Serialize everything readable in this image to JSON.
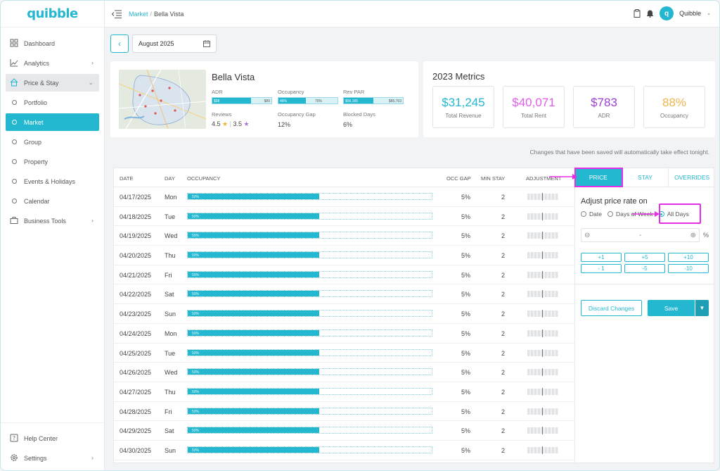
{
  "brand": "quibble",
  "breadcrumb": {
    "parent": "Market",
    "current": "Bella Vista"
  },
  "user": {
    "initial": "q",
    "name": "Quibble"
  },
  "sidebar": {
    "items": [
      {
        "label": "Dashboard"
      },
      {
        "label": "Analytics"
      },
      {
        "label": "Price & Stay"
      },
      {
        "label": "Portfolio"
      },
      {
        "label": "Market"
      },
      {
        "label": "Group"
      },
      {
        "label": "Property"
      },
      {
        "label": "Events & Holidays"
      },
      {
        "label": "Calendar"
      },
      {
        "label": "Business Tools"
      }
    ],
    "bottom": [
      {
        "label": "Help Center"
      },
      {
        "label": "Settings"
      }
    ]
  },
  "toolbar": {
    "month": "August 2025"
  },
  "property": {
    "name": "Bella Vista",
    "adr_label": "ADR",
    "adr_left": "$98",
    "adr_right": "$89",
    "adr_fill": 0.66,
    "occ_label": "Occupancy",
    "occ_left": "46%",
    "occ_right": "70%",
    "occ_fill": 0.46,
    "revpar_label": "Rev PAR",
    "revpar_left": "$56,165",
    "revpar_right": "$85,763",
    "revpar_fill": 0.5,
    "reviews_label": "Reviews",
    "review_a": "4.5",
    "review_b": "3.5",
    "gap_label": "Occupancy Gap",
    "gap_value": "12%",
    "blocked_label": "Blocked Days",
    "blocked_value": "6%"
  },
  "metrics": {
    "title": "2023 Metrics",
    "cards": [
      {
        "value": "$31,245",
        "label": "Total Revenue",
        "color": "#23b7d0"
      },
      {
        "value": "$40,071",
        "label": "Total Rent",
        "color": "#e05ee8"
      },
      {
        "value": "$783",
        "label": "ADR",
        "color": "#9b3fd6"
      },
      {
        "value": "88%",
        "label": "Occupancy",
        "color": "#f0b64d"
      }
    ]
  },
  "notice": "Changes that have been saved will automatically take effect tonight.",
  "table": {
    "headers": {
      "date": "DATE",
      "day": "DAY",
      "occupancy": "OCCUPANCY",
      "occ_gap": "OCC GAP",
      "min_stay": "MIN STAY",
      "adjustment": "ADJUSTMENT"
    },
    "rows": [
      {
        "date": "04/17/2025",
        "day": "Mon",
        "pct": "50%",
        "fill": 0.54,
        "gap": "5%",
        "min": "2"
      },
      {
        "date": "04/18/2025",
        "day": "Tue",
        "pct": "50%",
        "fill": 0.54,
        "gap": "5%",
        "min": "2"
      },
      {
        "date": "04/19/2025",
        "day": "Wed",
        "pct": "50%",
        "fill": 0.54,
        "gap": "5%",
        "min": "2"
      },
      {
        "date": "04/20/2025",
        "day": "Thu",
        "pct": "50%",
        "fill": 0.54,
        "gap": "5%",
        "min": "2"
      },
      {
        "date": "04/21/2025",
        "day": "Fri",
        "pct": "50%",
        "fill": 0.54,
        "gap": "5%",
        "min": "2"
      },
      {
        "date": "04/22/2025",
        "day": "Sat",
        "pct": "50%",
        "fill": 0.54,
        "gap": "5%",
        "min": "2"
      },
      {
        "date": "04/23/2025",
        "day": "Sun",
        "pct": "50%",
        "fill": 0.54,
        "gap": "5%",
        "min": "2"
      },
      {
        "date": "04/24/2025",
        "day": "Mon",
        "pct": "50%",
        "fill": 0.54,
        "gap": "5%",
        "min": "2"
      },
      {
        "date": "04/25/2025",
        "day": "Tue",
        "pct": "50%",
        "fill": 0.54,
        "gap": "5%",
        "min": "2"
      },
      {
        "date": "04/26/2025",
        "day": "Wed",
        "pct": "50%",
        "fill": 0.54,
        "gap": "5%",
        "min": "2"
      },
      {
        "date": "04/27/2025",
        "day": "Thu",
        "pct": "50%",
        "fill": 0.54,
        "gap": "5%",
        "min": "2"
      },
      {
        "date": "04/28/2025",
        "day": "Fri",
        "pct": "50%",
        "fill": 0.54,
        "gap": "5%",
        "min": "2"
      },
      {
        "date": "04/29/2025",
        "day": "Sat",
        "pct": "50%",
        "fill": 0.54,
        "gap": "5%",
        "min": "2"
      },
      {
        "date": "04/30/2025",
        "day": "Sun",
        "pct": "50%",
        "fill": 0.54,
        "gap": "5%",
        "min": "2"
      }
    ]
  },
  "panel": {
    "tabs": [
      "PRICE",
      "STAY",
      "OVERRIDES"
    ],
    "title": "Adjust price rate on",
    "options": [
      "Date",
      "Days of Week",
      "All Days"
    ],
    "stepper_value": "-",
    "unit": "%",
    "quick": [
      "+1",
      "+5",
      "+10",
      "- 1",
      "-5",
      "-10"
    ],
    "discard": "Discard Changes",
    "save": "Save"
  },
  "colors": {
    "accent": "#23b7d0",
    "highlight": "#e62ee6"
  }
}
